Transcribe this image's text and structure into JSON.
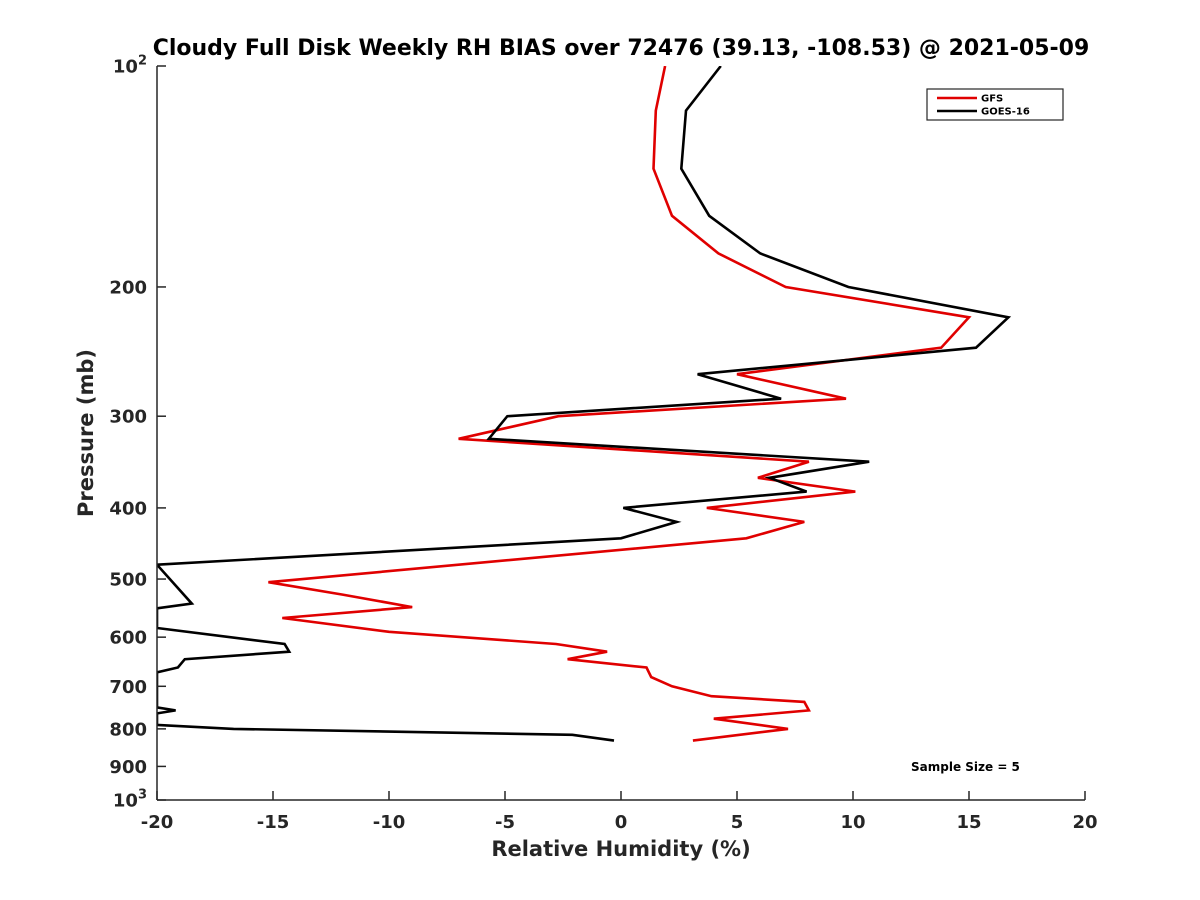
{
  "chart_data": {
    "type": "line",
    "title": "Cloudy Full Disk Weekly RH BIAS over 72476 (39.13, -108.53) @ 2021-05-09",
    "xlabel": "Relative Humidity (%)",
    "ylabel": "Pressure (mb)",
    "xlim": [
      -20,
      20
    ],
    "ylim": [
      100,
      1000
    ],
    "yscale": "log",
    "y_reversed": true,
    "grid": false,
    "legend_position": "top-right",
    "x_ticks": [
      "-20",
      "-15",
      "-10",
      "-5",
      "0",
      "5",
      "10",
      "15",
      "20"
    ],
    "x_tick_values": [
      -20,
      -15,
      -10,
      -5,
      0,
      5,
      10,
      15,
      20
    ],
    "y_ticks": [
      {
        "value": 100,
        "base": "10",
        "exp": "2"
      },
      {
        "value": 200,
        "label": "200"
      },
      {
        "value": 300,
        "label": "300"
      },
      {
        "value": 400,
        "label": "400"
      },
      {
        "value": 500,
        "label": "500"
      },
      {
        "value": 600,
        "label": "600"
      },
      {
        "value": 700,
        "label": "700"
      },
      {
        "value": 800,
        "label": "800"
      },
      {
        "value": 900,
        "label": "900"
      },
      {
        "value": 1000,
        "base": "10",
        "exp": "3"
      }
    ],
    "series": [
      {
        "name": "GFS",
        "color": "#e00000",
        "points": [
          [
            1.9,
            100
          ],
          [
            1.5,
            115
          ],
          [
            1.4,
            138
          ],
          [
            2.2,
            160
          ],
          [
            4.2,
            180
          ],
          [
            7.1,
            200
          ],
          [
            15.0,
            220
          ],
          [
            13.8,
            242
          ],
          [
            5.0,
            263
          ],
          [
            9.7,
            284
          ],
          [
            -2.7,
            300
          ],
          [
            -7.0,
            322
          ],
          [
            8.1,
            346
          ],
          [
            5.9,
            364
          ],
          [
            10.1,
            380
          ],
          [
            3.7,
            400
          ],
          [
            7.9,
            418
          ],
          [
            5.4,
            440
          ],
          [
            -15.2,
            505
          ],
          [
            -12.0,
            525
          ],
          [
            -9.0,
            546
          ],
          [
            -14.6,
            565
          ],
          [
            -10.0,
            590
          ],
          [
            -2.8,
            613
          ],
          [
            -0.6,
            628
          ],
          [
            -2.3,
            643
          ],
          [
            1.1,
            660
          ],
          [
            1.3,
            680
          ],
          [
            2.2,
            700
          ],
          [
            3.9,
            722
          ],
          [
            7.9,
            735
          ],
          [
            8.1,
            755
          ],
          [
            4.0,
            775
          ],
          [
            7.2,
            800
          ],
          [
            3.1,
            830
          ]
        ]
      },
      {
        "name": "GOES-16",
        "color": "#000000",
        "points": [
          [
            4.3,
            100
          ],
          [
            2.8,
            115
          ],
          [
            2.6,
            138
          ],
          [
            3.8,
            160
          ],
          [
            6.0,
            180
          ],
          [
            9.8,
            200
          ],
          [
            16.7,
            220
          ],
          [
            15.3,
            242
          ],
          [
            3.3,
            263
          ],
          [
            6.9,
            284
          ],
          [
            -4.9,
            300
          ],
          [
            -5.7,
            322
          ],
          [
            10.7,
            346
          ],
          [
            6.4,
            364
          ],
          [
            8.0,
            380
          ],
          [
            0.1,
            400
          ],
          [
            2.4,
            418
          ],
          [
            0.0,
            440
          ],
          [
            -20.0,
            478
          ],
          [
            -18.5,
            540
          ],
          [
            -20.0,
            548
          ],
          [
            -20.0,
            583
          ],
          [
            -14.5,
            613
          ],
          [
            -14.3,
            628
          ],
          [
            -18.8,
            643
          ],
          [
            -19.1,
            660
          ],
          [
            -20.0,
            670
          ],
          [
            -20.0,
            748
          ],
          [
            -19.2,
            755
          ],
          [
            -20.0,
            762
          ],
          [
            -20.0,
            790
          ],
          [
            -16.7,
            800
          ],
          [
            -2.1,
            815
          ],
          [
            -0.3,
            830
          ]
        ]
      }
    ],
    "annotation": "Sample Size = 5"
  }
}
